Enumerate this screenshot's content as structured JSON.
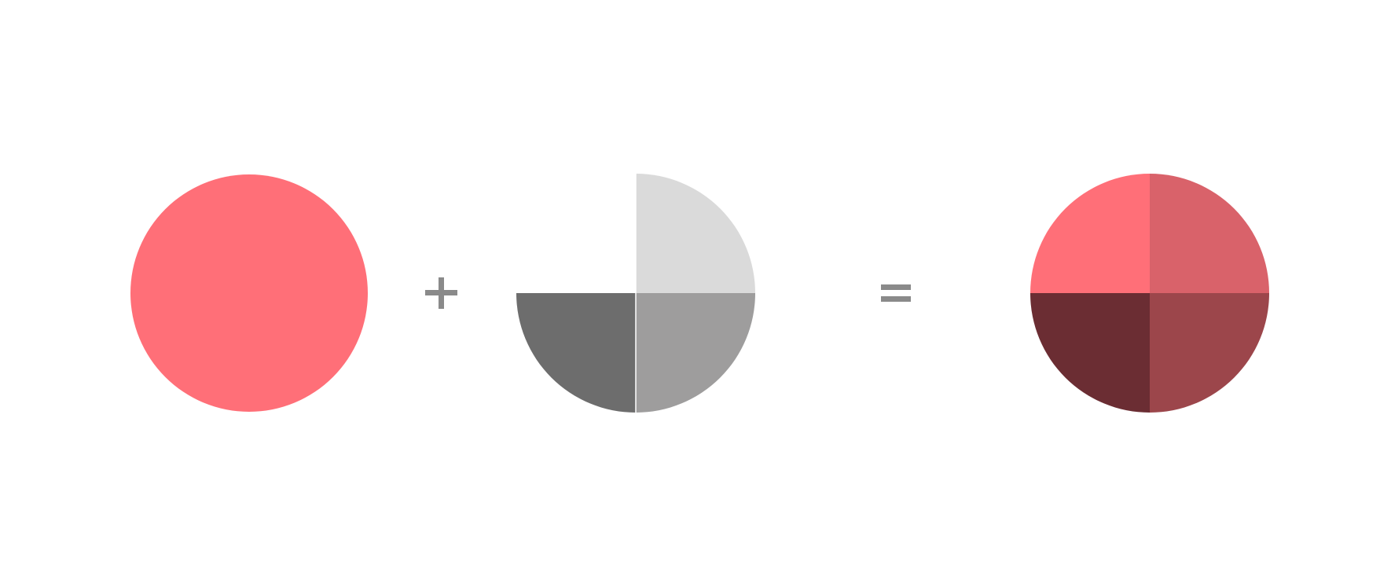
{
  "base_circle": {
    "color": "#ff6f78"
  },
  "operators": {
    "plus": {
      "icon": "plus-icon",
      "color": "#8a8a8a"
    },
    "equals": {
      "icon": "equals-icon",
      "color": "#8a8a8a"
    }
  },
  "overlay": {
    "quadrants": [
      {
        "name": "overlay-quadrant-top-right",
        "color": "#dadada"
      },
      {
        "name": "overlay-quadrant-bottom-right",
        "color": "#9e9d9d"
      },
      {
        "name": "overlay-quadrant-bottom-left",
        "color": "#6d6d6d"
      }
    ]
  },
  "result": {
    "quadrants": [
      {
        "name": "result-quadrant-top-left",
        "color": "#ff6f78"
      },
      {
        "name": "result-quadrant-top-right",
        "color": "#d9626a"
      },
      {
        "name": "result-quadrant-bottom-right",
        "color": "#9c464b"
      },
      {
        "name": "result-quadrant-bottom-left",
        "color": "#6b2d33"
      }
    ]
  }
}
